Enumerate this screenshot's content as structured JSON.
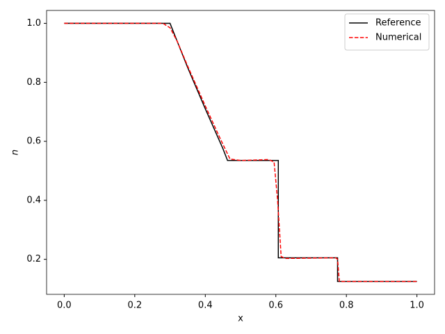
{
  "chart_data": {
    "type": "line",
    "xlabel": "x",
    "ylabel": "n",
    "xlim": [
      -0.05,
      1.05
    ],
    "ylim": [
      0.08125,
      1.04375
    ],
    "xticks": [
      {
        "value": 0,
        "label": "0.0"
      },
      0.2,
      0.4,
      0.6,
      0.8,
      {
        "value": 1,
        "label": "1.0"
      }
    ],
    "yticks": [
      0.2,
      0.4,
      0.6,
      0.8,
      {
        "value": 1,
        "label": "1.0"
      }
    ],
    "legend": "upper right",
    "series": [
      {
        "name": "Reference",
        "color": "#000000",
        "style": "solid",
        "x": [
          0,
          0.3,
          0.35,
          0.4,
          0.45,
          0.463,
          0.607,
          0.607,
          0.775,
          0.775,
          1.0
        ],
        "values": [
          1.0,
          1.0,
          0.85,
          0.71,
          0.575,
          0.535,
          0.535,
          0.205,
          0.205,
          0.125,
          0.125
        ]
      },
      {
        "name": "Numerical",
        "color": "#ff0000",
        "style": "dashed",
        "x": [
          0,
          0.28,
          0.3,
          0.32,
          0.35,
          0.4,
          0.44,
          0.47,
          0.5,
          0.58,
          0.595,
          0.605,
          0.615,
          0.625,
          0.77,
          0.775,
          0.78,
          1.0
        ],
        "values": [
          1.0,
          1.0,
          0.985,
          0.94,
          0.855,
          0.72,
          0.615,
          0.54,
          0.535,
          0.538,
          0.53,
          0.4,
          0.21,
          0.203,
          0.205,
          0.2,
          0.125,
          0.125
        ]
      }
    ]
  }
}
